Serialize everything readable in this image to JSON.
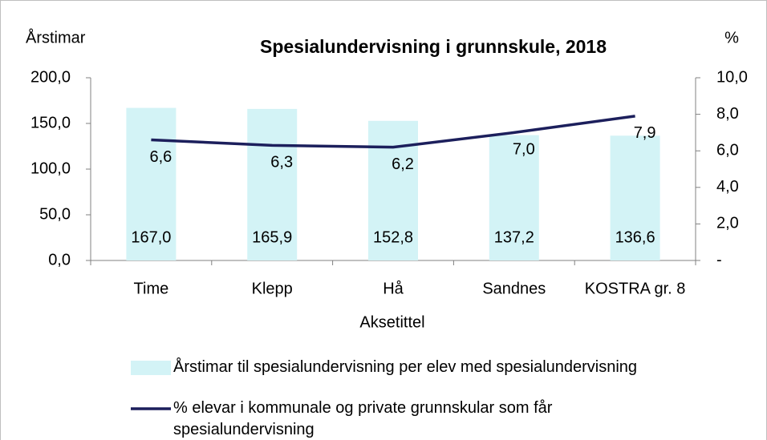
{
  "chart_data": {
    "type": "bar",
    "title": "Spesialundervisning i grunnskule, 2018",
    "y_label": "Årstimar",
    "y2_label": "%",
    "x_label": "Aksetittel",
    "categories": [
      "Time",
      "Klepp",
      "Hå",
      "Sandnes",
      "KOSTRA gr. 8"
    ],
    "series": [
      {
        "name": "Årstimar til spesialundervisning per elev med spesialundervisning",
        "type": "bar",
        "color": "#d3f3f6",
        "values": [
          167.0,
          165.9,
          152.8,
          137.2,
          136.6
        ],
        "value_labels": [
          "167,0",
          "165,9",
          "152,8",
          "137,2",
          "136,6"
        ]
      },
      {
        "name": "% elevar i kommunale og private grunnskular som får spesialundervisning",
        "type": "line",
        "axis": "y2",
        "color": "#1c1f5c",
        "values": [
          6.6,
          6.3,
          6.2,
          7.0,
          7.9
        ],
        "value_labels": [
          "6,6",
          "6,3",
          "6,2",
          "7,0",
          "7,9"
        ]
      }
    ],
    "ylim": [
      0,
      200
    ],
    "yticks": [
      {
        "value": 0,
        "label": "0,0"
      },
      {
        "value": 50,
        "label": "50,0"
      },
      {
        "value": 100,
        "label": "100,0"
      },
      {
        "value": 150,
        "label": "150,0"
      },
      {
        "value": 200,
        "label": "200,0"
      }
    ],
    "y2lim": [
      0,
      10
    ],
    "y2ticks": [
      {
        "value": 0,
        "label": "-"
      },
      {
        "value": 2,
        "label": "2,0"
      },
      {
        "value": 4,
        "label": "4,0"
      },
      {
        "value": 6,
        "label": "6,0"
      },
      {
        "value": 8,
        "label": "8,0"
      },
      {
        "value": 10,
        "label": "10,0"
      }
    ],
    "grid": false,
    "legend": "bottom"
  }
}
